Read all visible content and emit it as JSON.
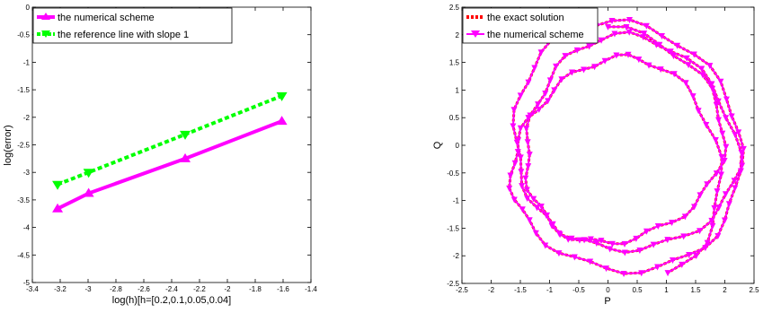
{
  "chart_data": [
    {
      "type": "line",
      "xlabel": "log(h)[h=[0.2,0.1,0.05,0.04]",
      "ylabel": "log(error)",
      "xlim": [
        -3.4,
        -1.4
      ],
      "ylim": [
        -5,
        0
      ],
      "xticks": [
        "-3.4",
        "-3.2",
        "-3",
        "-2.8",
        "-2.6",
        "-2.4",
        "-2.2",
        "-2",
        "-1.8",
        "-1.6",
        "-1.4"
      ],
      "yticks": [
        "0",
        "-0.5",
        "-1",
        "-1.5",
        "-2",
        "-2.5",
        "-3",
        "-3.5",
        "-4",
        "-4.5",
        "-5"
      ],
      "grid": false,
      "legend_position": "top-left",
      "series": [
        {
          "name": "the numerical scheme",
          "color": "#ff00ff",
          "marker": "triangle-up",
          "linestyle": "solid",
          "x": [
            -3.219,
            -2.996,
            -2.303,
            -1.609
          ],
          "y": [
            -3.66,
            -3.38,
            -2.75,
            -2.07
          ]
        },
        {
          "name": "the reference line with slope 1",
          "color": "#00ff00",
          "marker": "triangle-down",
          "linestyle": "dashed",
          "x": [
            -3.219,
            -2.996,
            -2.303,
            -1.609
          ],
          "y": [
            -3.22,
            -3.0,
            -2.31,
            -1.61
          ]
        }
      ]
    },
    {
      "type": "line",
      "xlabel": "P",
      "ylabel": "Q",
      "xlim": [
        -2.5,
        2.5
      ],
      "ylim": [
        -2.5,
        2.5
      ],
      "xticks": [
        "-2.5",
        "-2",
        "-1.5",
        "-1",
        "-0.5",
        "0",
        "0.5",
        "1",
        "1.5",
        "2",
        "2.5"
      ],
      "yticks": [
        "2.5",
        "2",
        "1.5",
        "1",
        "0.5",
        "0",
        "-0.5",
        "-1",
        "-1.5",
        "-2",
        "-2.5"
      ],
      "grid": false,
      "legend_position": "top-left",
      "series": [
        {
          "name": "the exact solution",
          "color": "#ff0000",
          "marker": "none",
          "linestyle": "dotted"
        },
        {
          "name": "the numerical scheme",
          "color": "#ff00ff",
          "marker": "triangle-down",
          "linestyle": "solid"
        }
      ],
      "curve": {
        "description_free_params": {
          "t_max": 21.5,
          "samples": 160,
          "cx": 0.0,
          "cy": -0.2,
          "rx0": 1.85,
          "rx1": 0.45,
          "ry0": 2.0,
          "ry1": 0.45,
          "k": 0.85,
          "ripple_amp": 0.06,
          "ripple_freq": 9
        }
      }
    }
  ]
}
